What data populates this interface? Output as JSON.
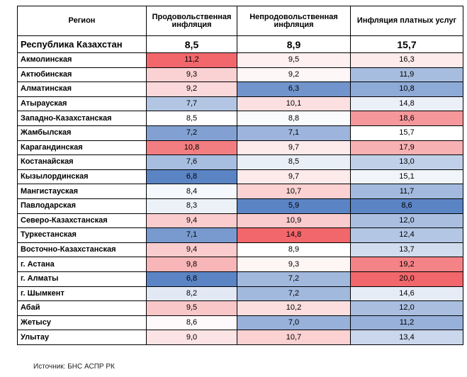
{
  "table": {
    "headers": [
      "Регион",
      "Продовольственная инфляция",
      "Непродовольственная инфляция",
      "Инфляция платных услуг"
    ],
    "total": {
      "region": "Республика Казахстан",
      "values": [
        "8,5",
        "8,9",
        "15,7"
      ]
    },
    "rows": [
      {
        "region": "Акмолинская",
        "values": [
          "11,2",
          "9,5",
          "16,3"
        ]
      },
      {
        "region": "Актюбинская",
        "values": [
          "9,3",
          "9,2",
          "11,9"
        ]
      },
      {
        "region": "Алматинская",
        "values": [
          "9,2",
          "6,3",
          "10,8"
        ]
      },
      {
        "region": "Атырауская",
        "values": [
          "7,7",
          "10,1",
          "14,8"
        ]
      },
      {
        "region": "Западно-Казахстанская",
        "values": [
          "8,5",
          "8,8",
          "18,6"
        ]
      },
      {
        "region": "Жамбылская",
        "values": [
          "7,2",
          "7,1",
          "15,7"
        ]
      },
      {
        "region": "Карагандинская",
        "values": [
          "10,8",
          "9,7",
          "17,9"
        ]
      },
      {
        "region": "Костанайская",
        "values": [
          "7,6",
          "8,5",
          "13,0"
        ]
      },
      {
        "region": "Кызылординская",
        "values": [
          "6,8",
          "9,7",
          "15,1"
        ]
      },
      {
        "region": "Мангистауская",
        "values": [
          "8,4",
          "10,7",
          "11,7"
        ]
      },
      {
        "region": "Павлодарская",
        "values": [
          "8,3",
          "5,9",
          "8,6"
        ]
      },
      {
        "region": "Северо-Казахстанская",
        "values": [
          "9,4",
          "10,9",
          "12,0"
        ]
      },
      {
        "region": "Туркестанская",
        "values": [
          "7,1",
          "14,8",
          "12,4"
        ]
      },
      {
        "region": "Восточно-Казахстанская",
        "values": [
          "9,4",
          "8,9",
          "13,7"
        ]
      },
      {
        "region": "г. Астана",
        "values": [
          "9,8",
          "9,3",
          "19,2"
        ]
      },
      {
        "region": "г. Алматы",
        "values": [
          "6,8",
          "7,2",
          "20,0"
        ]
      },
      {
        "region": "г. Шымкент",
        "values": [
          "8,2",
          "7,2",
          "14,6"
        ]
      },
      {
        "region": "Абай",
        "values": [
          "9,5",
          "10,2",
          "12,0"
        ]
      },
      {
        "region": "Жетысу",
        "values": [
          "8,6",
          "7,0",
          "11,2"
        ]
      },
      {
        "region": "Улытау",
        "values": [
          "9,0",
          "10,7",
          "13,4"
        ]
      }
    ]
  },
  "chart_data": {
    "type": "heatmap",
    "columns": [
      "Продовольственная инфляция",
      "Непродовольственная инфляция",
      "Инфляция платных услуг"
    ],
    "total": {
      "region": "Республика Казахстан",
      "values": [
        8.5,
        8.9,
        15.7
      ]
    },
    "regions": [
      "Акмолинская",
      "Актюбинская",
      "Алматинская",
      "Атырауская",
      "Западно-Казахстанская",
      "Жамбылская",
      "Карагандинская",
      "Костанайская",
      "Кызылординская",
      "Мангистауская",
      "Павлодарская",
      "Северо-Казахстанская",
      "Туркестанская",
      "Восточно-Казахстанская",
      "г. Астана",
      "г. Алматы",
      "г. Шымкент",
      "Абай",
      "Жетысу",
      "Улытау"
    ],
    "values": [
      [
        11.2,
        9.5,
        16.3
      ],
      [
        9.3,
        9.2,
        11.9
      ],
      [
        9.2,
        6.3,
        10.8
      ],
      [
        7.7,
        10.1,
        14.8
      ],
      [
        8.5,
        8.8,
        18.6
      ],
      [
        7.2,
        7.1,
        15.7
      ],
      [
        10.8,
        9.7,
        17.9
      ],
      [
        7.6,
        8.5,
        13.0
      ],
      [
        6.8,
        9.7,
        15.1
      ],
      [
        8.4,
        10.7,
        11.7
      ],
      [
        8.3,
        5.9,
        8.6
      ],
      [
        9.4,
        10.9,
        12.0
      ],
      [
        7.1,
        14.8,
        12.4
      ],
      [
        9.4,
        8.9,
        13.7
      ],
      [
        9.8,
        9.3,
        19.2
      ],
      [
        6.8,
        7.2,
        20.0
      ],
      [
        8.2,
        7.2,
        14.6
      ],
      [
        9.5,
        10.2,
        12.0
      ],
      [
        8.6,
        7.0,
        11.2
      ],
      [
        9.0,
        10.7,
        13.4
      ]
    ],
    "color_scale": {
      "low": "#5b84c4",
      "mid": "#ffffff",
      "high": "#f1676b"
    }
  },
  "source": "Источник: БНС АСПР РК"
}
